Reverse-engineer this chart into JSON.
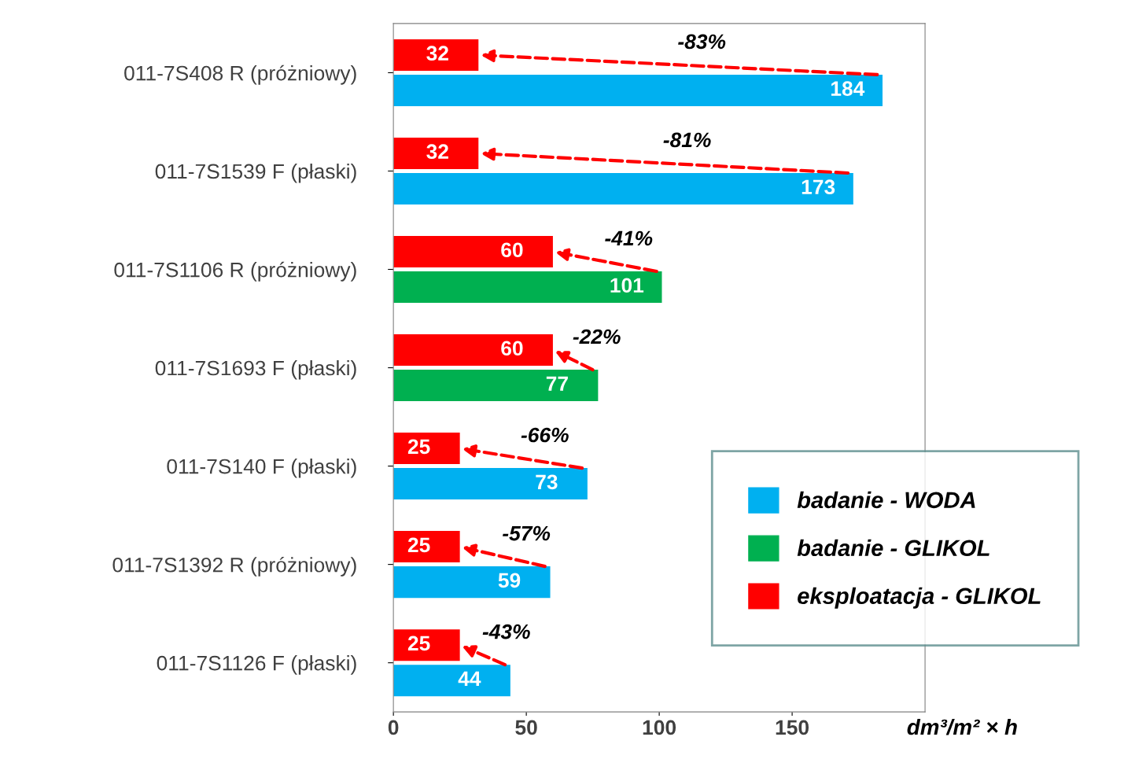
{
  "chart_data": {
    "type": "bar",
    "orientation": "horizontal",
    "xlabel": "dm³/m² × h",
    "categories": [
      "011-7S408 R (próżniowy)",
      "011-7S1539 F (płaski)",
      "011-7S1106 R (próżniowy)",
      "011-7S1693 F (płaski)",
      "011-7S140 F (płaski)",
      "011-7S1392 R (próżniowy)",
      "011-7S1126 F (płaski)"
    ],
    "series": [
      {
        "name": "badanie - WODA",
        "color": "#00b0f0",
        "values": [
          184,
          173,
          null,
          null,
          73,
          59,
          44
        ]
      },
      {
        "name": "badanie - GLIKOL",
        "color": "#00b050",
        "values": [
          null,
          null,
          101,
          77,
          null,
          null,
          null
        ]
      },
      {
        "name": "eksploatacja - GLIKOL",
        "color": "#ff0000",
        "values": [
          32,
          32,
          60,
          60,
          25,
          25,
          25
        ]
      }
    ],
    "xlim": [
      0,
      200
    ],
    "xticks": [
      0,
      50,
      100,
      150
    ],
    "grid": false,
    "legend": "bottom right",
    "data_labels": true,
    "annotations": [
      "-83%",
      "-81%",
      "-41%",
      "-22%",
      "-66%",
      "-57%",
      "-43%"
    ]
  }
}
